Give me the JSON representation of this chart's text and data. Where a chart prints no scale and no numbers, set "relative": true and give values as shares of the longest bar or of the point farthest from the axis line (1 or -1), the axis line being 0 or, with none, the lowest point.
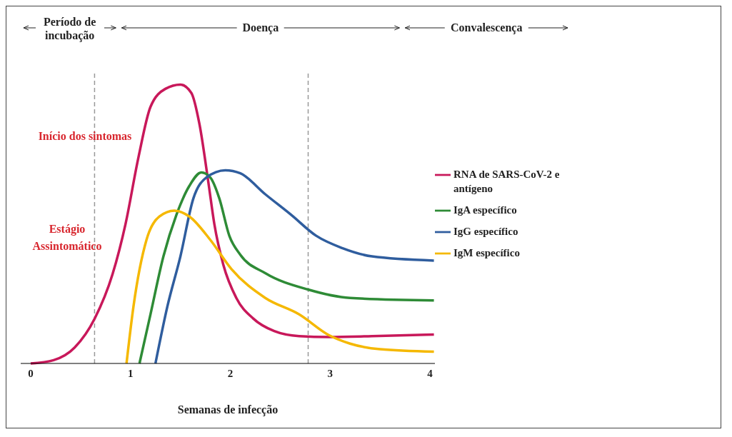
{
  "chart_data": {
    "type": "line",
    "relative": true,
    "xlabel": "Semanas de infecção",
    "xlim": [
      -0.1,
      4.05
    ],
    "xticks": [
      0,
      1,
      2,
      3,
      4
    ],
    "legend": "right",
    "marker": "none",
    "line_style": "solid",
    "grid": false,
    "ref_lines": [
      {
        "axis": "x",
        "value": 0.64,
        "color": "#999999",
        "line_style": "dashed"
      },
      {
        "axis": "x",
        "value": 2.78,
        "color": "#999999",
        "line_style": "dashed"
      }
    ],
    "annotations": [
      "Período de incubação",
      "Doença",
      "Convalescença",
      "Início dos sintomas",
      "Estágio Assintomático"
    ],
    "series": [
      {
        "name": "RNA de SARS-CoV-2 e antígeno",
        "color": "#c8185a",
        "x": [
          0,
          0.23,
          0.44,
          0.64,
          0.82,
          0.95,
          1.08,
          1.2,
          1.35,
          1.5,
          1.61,
          1.69,
          1.78,
          1.84,
          1.93,
          2.06,
          2.23,
          2.44,
          2.69,
          2.99,
          3.42,
          4.04
        ],
        "values": [
          0,
          0.012,
          0.057,
          0.16,
          0.32,
          0.5,
          0.74,
          0.92,
          0.985,
          1,
          0.97,
          0.86,
          0.65,
          0.5,
          0.354,
          0.235,
          0.161,
          0.116,
          0.098,
          0.095,
          0.098,
          0.104
        ]
      },
      {
        "name": "IgA específico",
        "color": "#2e8b36",
        "x": [
          1.09,
          1.2,
          1.33,
          1.46,
          1.59,
          1.71,
          1.8,
          1.89,
          1.99,
          2.1,
          2.35,
          2.78,
          3.2,
          4.04
        ],
        "values": [
          0,
          0.176,
          0.384,
          0.533,
          0.637,
          0.685,
          0.667,
          0.592,
          0.458,
          0.39,
          0.324,
          0.265,
          0.235,
          0.226
        ]
      },
      {
        "name": "IgG específico",
        "color": "#2f5d9e",
        "x": [
          1.25,
          1.37,
          1.5,
          1.63,
          1.76,
          1.95,
          2.1,
          2.35,
          2.61,
          2.86,
          3.12,
          3.42,
          4.04
        ],
        "values": [
          0,
          0.205,
          0.384,
          0.592,
          0.667,
          0.693,
          0.682,
          0.607,
          0.533,
          0.458,
          0.414,
          0.384,
          0.369
        ]
      },
      {
        "name": "IgM específico",
        "color": "#f5b800",
        "x": [
          0.96,
          1.03,
          1.16,
          1.29,
          1.44,
          1.59,
          1.8,
          2.01,
          2.35,
          2.69,
          2.99,
          3.2,
          3.5,
          4.04
        ],
        "values": [
          0,
          0.205,
          0.443,
          0.527,
          0.548,
          0.527,
          0.443,
          0.339,
          0.235,
          0.176,
          0.101,
          0.071,
          0.051,
          0.042
        ]
      }
    ]
  }
}
